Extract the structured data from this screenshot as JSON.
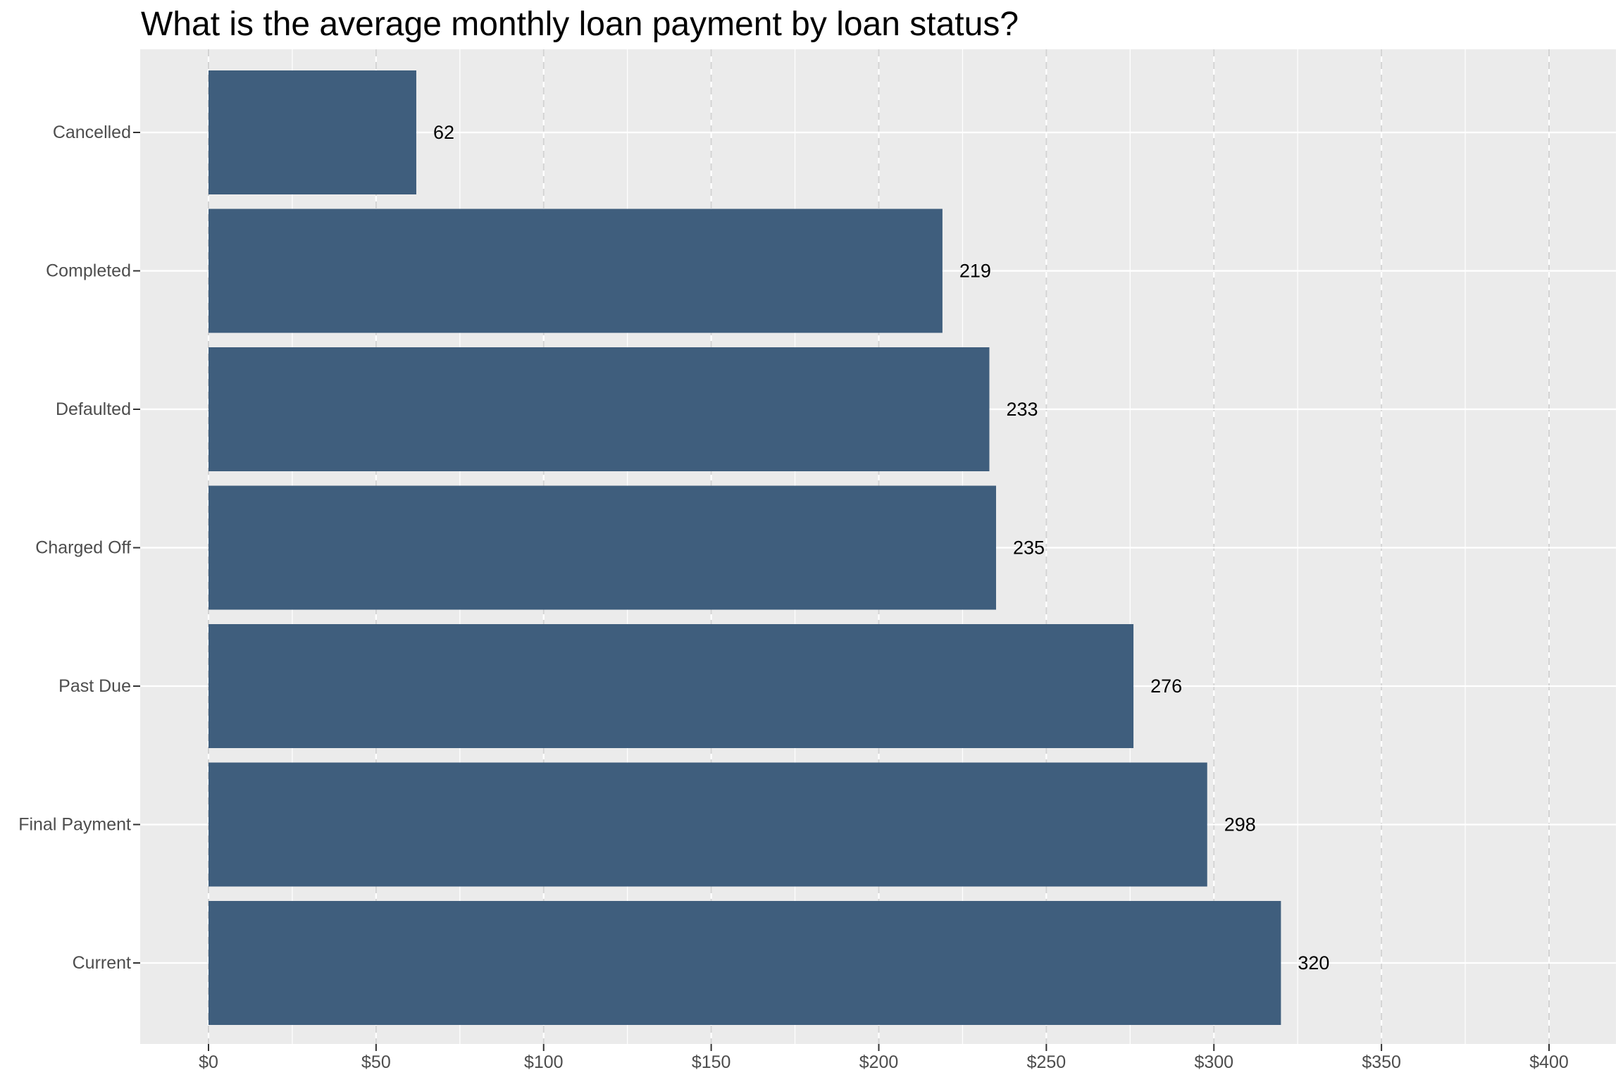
{
  "chart_data": {
    "type": "bar",
    "orientation": "horizontal",
    "title": "What is the average monthly loan payment by loan status?",
    "xlabel": "",
    "ylabel": "",
    "categories": [
      "Cancelled",
      "Completed",
      "Defaulted",
      "Charged Off",
      "Past Due",
      "Final Payment",
      "Current"
    ],
    "values": [
      62,
      219,
      233,
      235,
      276,
      298,
      320
    ],
    "data_labels": [
      "62",
      "219",
      "233",
      "235",
      "276",
      "298",
      "320"
    ],
    "x_ticks": [
      0,
      50,
      100,
      150,
      200,
      250,
      300,
      350,
      400
    ],
    "x_tick_labels": [
      "$0",
      "$50",
      "$100",
      "$150",
      "$200",
      "$250",
      "$300",
      "$350",
      "$400"
    ],
    "xlim": [
      -20,
      420
    ],
    "grid": true,
    "legend": "none",
    "colors": {
      "bar": "#3f5e7d",
      "panel_background": "#ebebeb",
      "grid_major": "#ffffff",
      "grid_dashed": "#d3d3d3",
      "tick_text": "#4d4d4d",
      "label_text": "#000000"
    }
  }
}
